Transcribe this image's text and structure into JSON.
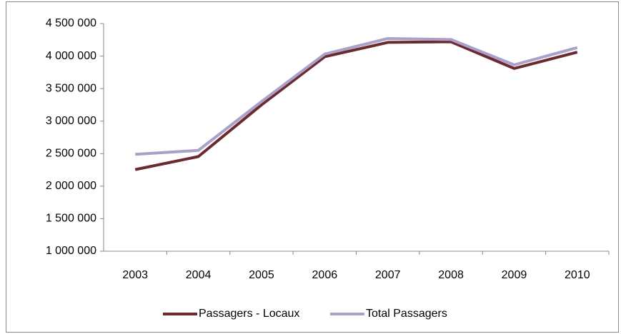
{
  "chart_data": {
    "type": "line",
    "categories": [
      "2003",
      "2004",
      "2005",
      "2006",
      "2007",
      "2008",
      "2009",
      "2010"
    ],
    "series": [
      {
        "name": "Passagers - Locaux",
        "color": "#6b2a2f",
        "values": [
          2255000,
          2455000,
          3250000,
          3990000,
          4210000,
          4220000,
          3810000,
          4060000
        ]
      },
      {
        "name": "Total Passagers",
        "color": "#aaa0c9",
        "values": [
          2490000,
          2550000,
          3300000,
          4030000,
          4270000,
          4255000,
          3865000,
          4130000
        ]
      }
    ],
    "ylim": [
      1000000,
      4500000
    ],
    "yticks": [
      {
        "value": 1000000,
        "label": "1 000 000"
      },
      {
        "value": 1500000,
        "label": "1 500 000"
      },
      {
        "value": 2000000,
        "label": "2 000 000"
      },
      {
        "value": 2500000,
        "label": "2 500 000"
      },
      {
        "value": 3000000,
        "label": "3 000 000"
      },
      {
        "value": 3500000,
        "label": "3 500 000"
      },
      {
        "value": 4000000,
        "label": "4 000 000"
      },
      {
        "value": 4500000,
        "label": "4 500 000"
      }
    ],
    "grid": false,
    "legend": "bottom"
  }
}
